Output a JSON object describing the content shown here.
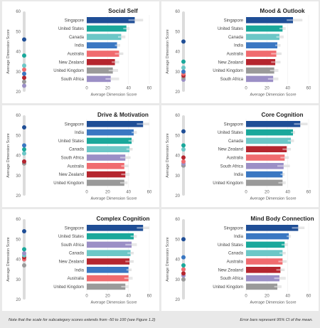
{
  "colors": {
    "Singapore": "#1f4e96",
    "United States": "#1aa89b",
    "Canada": "#6cc7c7",
    "India": "#3a77c2",
    "Australia": "#f06b6f",
    "New Zealand": "#b5262f",
    "United Kingdom": "#9a9a9a",
    "South Africa": "#9b8fc6",
    "ci_bar": "#d6d6d6",
    "axis_track": "#dcdcdc"
  },
  "chart_data": [
    {
      "type": "bar",
      "title": "Social Self",
      "ylabel": "Average Dimension Score",
      "xlabel": "Average Dimension Score",
      "xlim": [
        0,
        60
      ],
      "xticks": [
        0,
        20,
        40,
        60
      ],
      "strip_ylim": [
        20,
        60
      ],
      "strip_ticks": [
        20,
        30,
        40,
        50,
        60
      ],
      "categories": [
        "Singapore",
        "United States",
        "Canada",
        "India",
        "Australia",
        "New Zealand",
        "United Kingdom",
        "South Africa"
      ],
      "values": [
        46,
        38,
        33,
        29,
        31,
        27,
        25,
        23
      ],
      "ci": [
        [
          40,
          54
        ],
        [
          35,
          41
        ],
        [
          30,
          37
        ],
        [
          27,
          32
        ],
        [
          27,
          35
        ],
        [
          24,
          31
        ],
        [
          21,
          30
        ],
        [
          18,
          31
        ]
      ]
    },
    {
      "type": "bar",
      "title": "Mood & Outlook",
      "ylabel": "Average Dimension Score",
      "xlabel": "Average Dimension Score",
      "xlim": [
        0,
        60
      ],
      "xticks": [
        0,
        20,
        40,
        60
      ],
      "strip_ylim": [
        20,
        60
      ],
      "strip_ticks": [
        20,
        30,
        40,
        50,
        60
      ],
      "categories": [
        "Singapore",
        "United States",
        "Canada",
        "India",
        "Australia",
        "New Zealand",
        "United Kingdom",
        "South Africa"
      ],
      "values": [
        45,
        35,
        32,
        30,
        29,
        28,
        27,
        26
      ],
      "ci": [
        [
          39,
          54
        ],
        [
          32,
          38
        ],
        [
          29,
          36
        ],
        [
          28,
          33
        ],
        [
          24,
          34
        ],
        [
          24,
          33
        ],
        [
          23,
          31
        ],
        [
          21,
          31
        ]
      ]
    },
    {
      "type": "bar",
      "title": "Drive & Motivation",
      "ylabel": "Average Dimension Score",
      "xlabel": "Average Dimension Score",
      "xlim": [
        0,
        60
      ],
      "xticks": [
        0,
        20,
        40,
        60
      ],
      "strip_ylim": [
        20,
        60
      ],
      "strip_ticks": [
        20,
        30,
        40,
        50,
        60
      ],
      "categories": [
        "Singapore",
        "India",
        "United States",
        "Canada",
        "South Africa",
        "Australia",
        "New Zealand",
        "United Kingdom"
      ],
      "values": [
        54,
        45,
        43,
        41,
        37,
        36,
        37,
        36
      ],
      "ci": [
        [
          48,
          60
        ],
        [
          43,
          48
        ],
        [
          40,
          45
        ],
        [
          38,
          44
        ],
        [
          32,
          42
        ],
        [
          33,
          40
        ],
        [
          33,
          41
        ],
        [
          32,
          39
        ]
      ]
    },
    {
      "type": "bar",
      "title": "Core Cognition",
      "ylabel": "Average Dimension Score",
      "xlabel": "Average Dimension Score",
      "xlim": [
        0,
        60
      ],
      "xticks": [
        0,
        20,
        40,
        60
      ],
      "strip_ylim": [
        20,
        60
      ],
      "strip_ticks": [
        20,
        30,
        40,
        50,
        60
      ],
      "categories": [
        "Singapore",
        "United States",
        "Canada",
        "New Zealand",
        "Australia",
        "South Africa",
        "India",
        "United Kingdom"
      ],
      "values": [
        52,
        45,
        43,
        39,
        37,
        36,
        35,
        35
      ],
      "ci": [
        [
          46,
          59
        ],
        [
          43,
          47
        ],
        [
          40,
          46
        ],
        [
          35,
          43
        ],
        [
          33,
          41
        ],
        [
          30,
          42
        ],
        [
          33,
          37
        ],
        [
          31,
          38
        ]
      ]
    },
    {
      "type": "bar",
      "title": "Complex Cognition",
      "ylabel": "Average Dimension Score",
      "xlabel": "Average Dimension Score",
      "xlim": [
        0,
        60
      ],
      "xticks": [
        0,
        20,
        40,
        60
      ],
      "strip_ylim": [
        20,
        60
      ],
      "strip_ticks": [
        20,
        30,
        40,
        50,
        60
      ],
      "categories": [
        "Singapore",
        "United States",
        "South Africa",
        "Canada",
        "New Zealand",
        "India",
        "Australia",
        "United Kingdom"
      ],
      "values": [
        54,
        45,
        43,
        42,
        41,
        40,
        40,
        37
      ],
      "ci": [
        [
          48,
          60
        ],
        [
          42,
          48
        ],
        [
          37,
          48
        ],
        [
          39,
          45
        ],
        [
          37,
          45
        ],
        [
          38,
          43
        ],
        [
          36,
          44
        ],
        [
          33,
          40
        ]
      ]
    },
    {
      "type": "bar",
      "title": "Mind Body Connection",
      "ylabel": "Average Dimension Score",
      "xlabel": "Average Dimension Score",
      "xlim": [
        0,
        60
      ],
      "xticks": [
        0,
        20,
        40,
        60
      ],
      "strip_ylim": [
        20,
        60
      ],
      "strip_ticks": [
        20,
        30,
        40,
        50,
        60
      ],
      "categories": [
        "Singapore",
        "India",
        "United States",
        "Canada",
        "Australia",
        "New Zealand",
        "South Africa",
        "United Kingdom"
      ],
      "values": [
        50,
        41,
        37,
        35,
        35,
        33,
        32,
        30
      ],
      "ci": [
        [
          44,
          56
        ],
        [
          39,
          43
        ],
        [
          34,
          40
        ],
        [
          32,
          38
        ],
        [
          31,
          39
        ],
        [
          29,
          37
        ],
        [
          27,
          38
        ],
        [
          27,
          34
        ]
      ]
    }
  ],
  "footnotes": {
    "left": "Note that the scale for subcategory scores extends from -50 to 100 (see Figure 1.2)",
    "right": "Error bars represent 95% CI of the mean."
  }
}
